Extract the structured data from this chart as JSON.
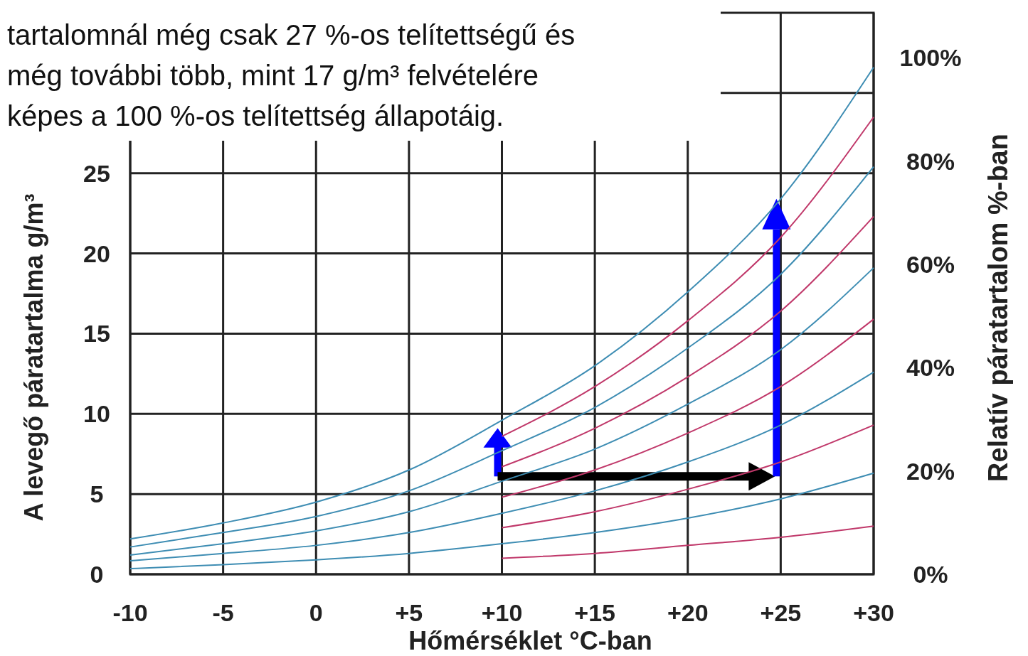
{
  "chart_data": {
    "type": "line",
    "xlabel": "Hőmérséklet °C-ban",
    "ylabel": "A levegő páratartalma g/m³",
    "y2label": "Relatív páratartalom %-ban",
    "annotations": [
      "tartalomnál még csak 27 %-os telítettségű és\nmég további több, mint 17 g/m³ felvételére\nképes a 100 %-os telítettség állapotáig."
    ],
    "x": [
      -10,
      -5,
      0,
      5,
      10,
      15,
      20,
      25,
      30
    ],
    "xlim": [
      -10,
      30
    ],
    "xticks": [
      -10,
      -5,
      0,
      {
        "value": 5,
        "label": "+5"
      },
      {
        "value": 10,
        "label": "+10"
      },
      {
        "value": 15,
        "label": "+15"
      },
      {
        "value": 20,
        "label": "+20"
      },
      {
        "value": 25,
        "label": "+25"
      },
      {
        "value": 30,
        "label": "+30"
      }
    ],
    "ylim": [
      0,
      35
    ],
    "yticks": [
      0,
      5,
      10,
      15,
      20,
      25,
      {
        "value": 30,
        "label": null
      }
    ],
    "y2lim": [
      0,
      108.7
    ],
    "y2ticks": [
      {
        "value": 0,
        "label": "0%"
      },
      {
        "value": 20,
        "label": "20%"
      },
      {
        "value": 40,
        "label": "40%"
      },
      {
        "value": 60,
        "label": "60%"
      },
      {
        "value": 80,
        "label": "80%"
      },
      {
        "value": 100,
        "label": "100%"
      }
    ],
    "grid": true,
    "marker": "none",
    "line_style": "solid",
    "series": [
      {
        "color": "#3e8db3",
        "values": [
          2.2,
          3.2,
          4.5,
          6.5,
          9.6,
          13.0,
          17.6,
          23.4,
          31.6
        ]
      },
      {
        "color": "#c0386a",
        "x": [
          10,
          15,
          20,
          25,
          30
        ],
        "values": [
          8.6,
          11.7,
          15.8,
          21.0,
          28.5
        ]
      },
      {
        "color": "#3e8db3",
        "values": [
          1.7,
          2.6,
          3.6,
          5.2,
          7.7,
          10.4,
          14.1,
          18.7,
          25.4
        ]
      },
      {
        "color": "#c0386a",
        "x": [
          10,
          15,
          20,
          25,
          30
        ],
        "values": [
          6.7,
          9.1,
          12.3,
          16.4,
          22.3
        ]
      },
      {
        "color": "#3e8db3",
        "values": [
          1.2,
          1.9,
          2.7,
          3.9,
          5.8,
          7.8,
          10.6,
          14.0,
          19.1
        ]
      },
      {
        "color": "#c0386a",
        "x": [
          10,
          15,
          20,
          25,
          30
        ],
        "values": [
          4.8,
          6.5,
          8.8,
          11.7,
          15.9
        ]
      },
      {
        "color": "#3e8db3",
        "values": [
          0.84,
          1.3,
          1.8,
          2.6,
          3.8,
          5.2,
          7.0,
          9.3,
          12.6
        ]
      },
      {
        "color": "#c0386a",
        "x": [
          10,
          15,
          20,
          25,
          30
        ],
        "values": [
          2.9,
          3.9,
          5.3,
          7.0,
          9.3
        ]
      },
      {
        "color": "#3e8db3",
        "values": [
          0.35,
          0.6,
          0.9,
          1.3,
          1.9,
          2.6,
          3.5,
          4.7,
          6.3
        ]
      },
      {
        "color": "#c0386a",
        "x": [
          10,
          15,
          20,
          25,
          30
        ],
        "values": [
          1.0,
          1.3,
          1.8,
          2.3,
          3.0
        ]
      }
    ]
  }
}
